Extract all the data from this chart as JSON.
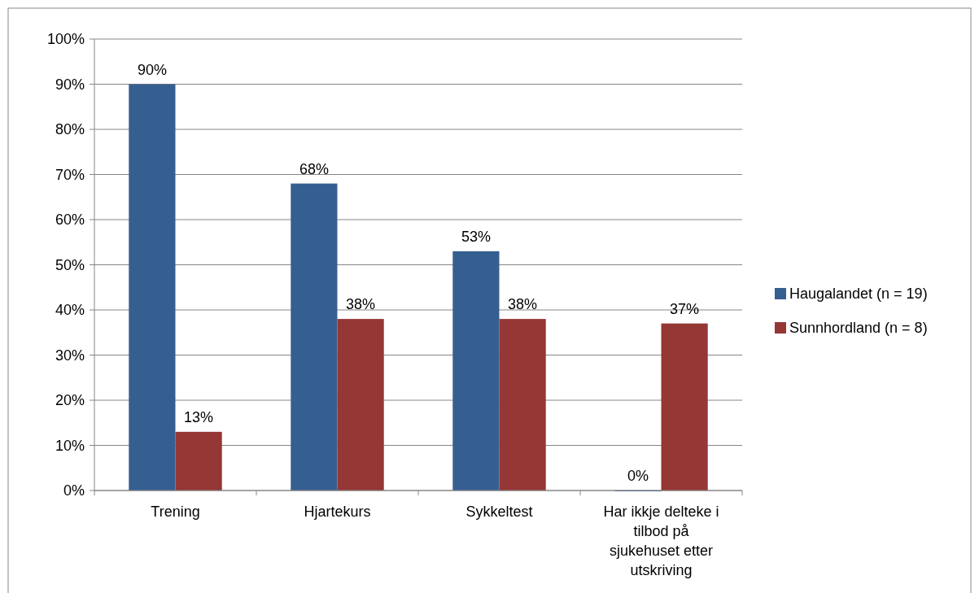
{
  "chart_data": {
    "type": "bar",
    "categories": [
      "Trening",
      "Hjartekurs",
      "Sykkeltest",
      "Har ikkje delteke i tilbod på sjukehuset etter utskriving"
    ],
    "series": [
      {
        "name": "Haugalandet (n = 19)",
        "color": "#365f91",
        "values": [
          90,
          68,
          53,
          0
        ],
        "value_labels": [
          "90%",
          "68%",
          "53%",
          "0%"
        ]
      },
      {
        "name": "Sunnhordland (n = 8)",
        "color": "#953735",
        "values": [
          13,
          38,
          38,
          37
        ],
        "value_labels": [
          "13%",
          "38%",
          "38%",
          "37%"
        ]
      }
    ],
    "ylim": [
      0,
      100
    ],
    "yticks": [
      {
        "value": 0,
        "label": "0%"
      },
      {
        "value": 10,
        "label": "10%"
      },
      {
        "value": 20,
        "label": "20%"
      },
      {
        "value": 30,
        "label": "30%"
      },
      {
        "value": 40,
        "label": "40%"
      },
      {
        "value": 50,
        "label": "50%"
      },
      {
        "value": 60,
        "label": "60%"
      },
      {
        "value": 70,
        "label": "70%"
      },
      {
        "value": 80,
        "label": "80%"
      },
      {
        "value": 90,
        "label": "90%"
      },
      {
        "value": 100,
        "label": "100%"
      }
    ],
    "grid": "y",
    "legend": "right"
  }
}
